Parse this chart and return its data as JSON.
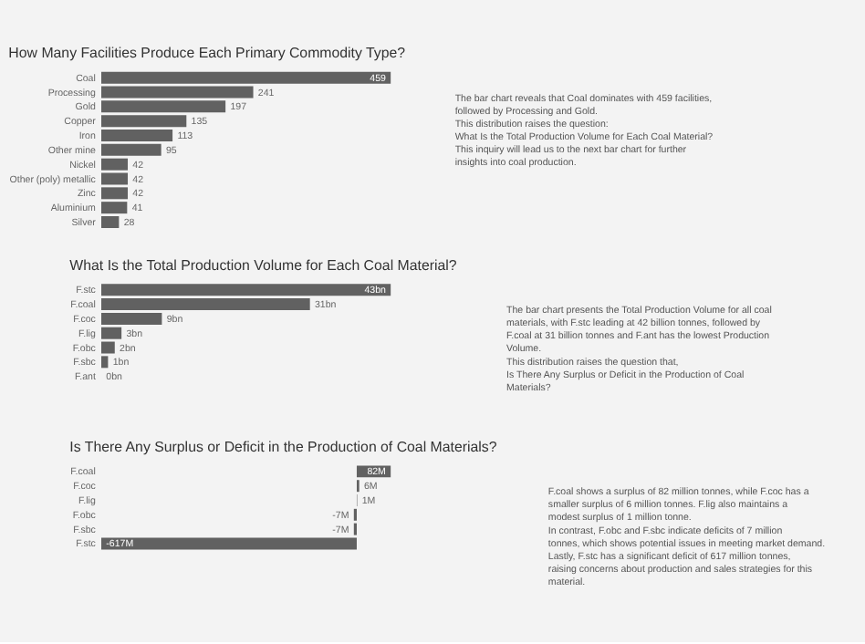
{
  "chart_data": [
    {
      "type": "bar",
      "orientation": "horizontal",
      "title": "How Many Facilities Produce Each Primary Commodity Type?",
      "categories": [
        "Coal",
        "Processing",
        "Gold",
        "Copper",
        "Iron",
        "Other mine",
        "Nickel",
        "Other (poly) metallic",
        "Zinc",
        "Aluminium",
        "Silver"
      ],
      "values": [
        459,
        241,
        197,
        135,
        113,
        95,
        42,
        42,
        42,
        41,
        28
      ],
      "color": "#616161",
      "data_labels": true
    },
    {
      "type": "other",
      "annotations": [
        "The bar chart reveals that Coal dominates with 459 facilities, followed by Processing and Gold.",
        "This distribution raises the question:",
        "What Is the Total Production Volume for Each Coal Material?",
        "This inquiry will lead us to the next bar chart for further insights into coal production."
      ]
    },
    {
      "type": "bar",
      "orientation": "horizontal",
      "title": "What Is the Total Production Volume for Each Coal Material?",
      "categories": [
        "F.stc",
        "F.coal",
        "F.coc",
        "F.lig",
        "F.obc",
        "F.sbc",
        "F.ant"
      ],
      "values": [
        43,
        31,
        9,
        3,
        2,
        1,
        0
      ],
      "color": "#616161",
      "value_labels": [
        "43bn",
        "31bn",
        "9bn",
        "3bn",
        "2bn",
        "1bn",
        "0bn"
      ]
    },
    {
      "type": "other",
      "annotations": [
        "The bar chart presents the Total Production Volume for all coal materials, with F.stc leading at 42 billion tonnes, followed by F.coal at 31 billion tonnes and F.ant has the lowest Production Volume.",
        "This distribution raises the question that,",
        "Is There Any Surplus or Deficit in the Production of Coal Materials?"
      ]
    },
    {
      "type": "bar",
      "orientation": "horizontal",
      "title": "Is There Any Surplus or Deficit in the Production of Coal Materials?",
      "categories": [
        "F.coal",
        "F.coc",
        "F.lig",
        "F.obc",
        "F.sbc",
        "F.stc"
      ],
      "values": [
        82,
        6,
        1,
        -7,
        -7,
        -617
      ],
      "color": "#616161",
      "value_labels": [
        "82M",
        "6M",
        "1M",
        "-7M",
        "-7M",
        "-617M"
      ]
    },
    {
      "type": "other",
      "annotations": [
        "F.coal shows a surplus of 82 million tonnes, while F.coc has a smaller surplus of 6 million tonnes. F.lig also maintains a modest surplus of 1 million tonne.",
        "In contrast, F.obc and F.sbc indicate deficits of 7 million tonnes, which shows potential issues in meeting market demand. Lastly, F.stc has a significant deficit of 617 million tonnes, raising concerns about production and sales strategies for this material."
      ]
    }
  ]
}
